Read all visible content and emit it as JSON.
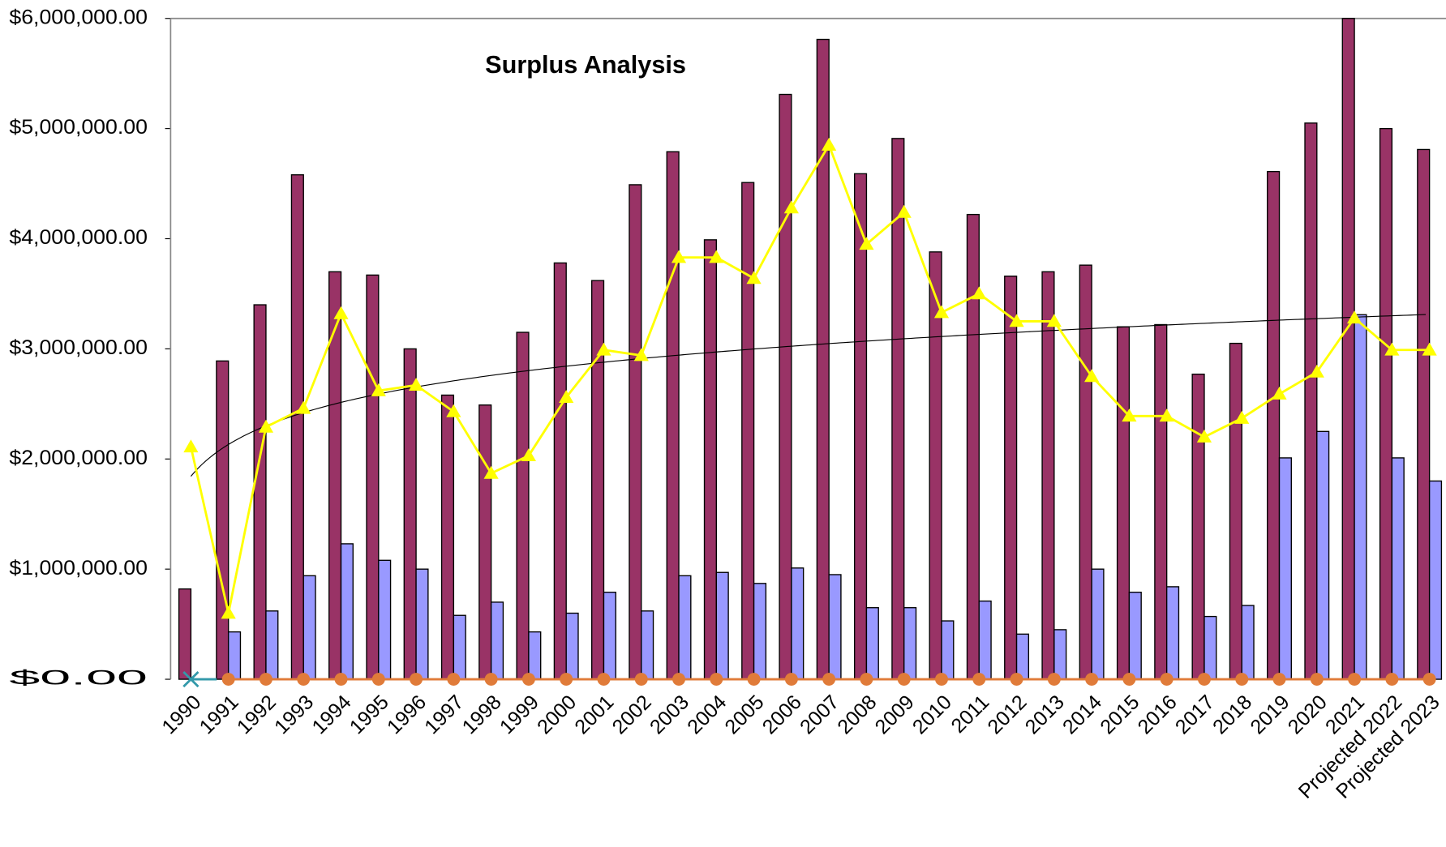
{
  "chart_data": {
    "type": "bar",
    "title": "Surplus Analysis",
    "categories": [
      "1990",
      "1991",
      "1992",
      "1993",
      "1994",
      "1995",
      "1996",
      "1997",
      "1998",
      "1999",
      "2000",
      "2001",
      "2002",
      "2003",
      "2004",
      "2005",
      "2006",
      "2007",
      "2008",
      "2009",
      "2010",
      "2011",
      "2012",
      "2013",
      "2014",
      "2015",
      "2016",
      "2017",
      "2018",
      "2019",
      "2020",
      "2021",
      "Projected 2022",
      "Projected 2023"
    ],
    "series": [
      {
        "kind": "bar",
        "color": "#993366",
        "values": [
          820000,
          2890000,
          3400000,
          4580000,
          3700000,
          3670000,
          3000000,
          2580000,
          2490000,
          3150000,
          3780000,
          3620000,
          4490000,
          4790000,
          3990000,
          4510000,
          5310000,
          5810000,
          4590000,
          4910000,
          3880000,
          4220000,
          3660000,
          3700000,
          3760000,
          3200000,
          3220000,
          2770000,
          3050000,
          4610000,
          5050000,
          6000000,
          5000000,
          4810000
        ]
      },
      {
        "kind": "bar",
        "color": "#9999ff",
        "values": [
          null,
          430000,
          620000,
          940000,
          1230000,
          1080000,
          1000000,
          580000,
          700000,
          430000,
          600000,
          790000,
          620000,
          940000,
          970000,
          870000,
          1010000,
          950000,
          650000,
          650000,
          530000,
          710000,
          410000,
          450000,
          1000000,
          790000,
          840000,
          570000,
          670000,
          2010000,
          2250000,
          3310000,
          2010000,
          1800000
        ]
      },
      {
        "kind": "line",
        "marker": "triangle",
        "color": "#ffff00",
        "trendline": "log",
        "values": [
          2110000,
          600000,
          2290000,
          2460000,
          3320000,
          2620000,
          2670000,
          2430000,
          1870000,
          2030000,
          2560000,
          2990000,
          2940000,
          3830000,
          3830000,
          3640000,
          4280000,
          4850000,
          3950000,
          4240000,
          3330000,
          3500000,
          3250000,
          3250000,
          2750000,
          2390000,
          2390000,
          2200000,
          2370000,
          2590000,
          2790000,
          3280000,
          2990000,
          2990000
        ]
      },
      {
        "kind": "line",
        "marker": "circle",
        "color": "#e07b39",
        "values": [
          null,
          0,
          0,
          0,
          0,
          0,
          0,
          0,
          0,
          0,
          0,
          0,
          0,
          0,
          0,
          0,
          0,
          0,
          0,
          0,
          0,
          0,
          0,
          0,
          0,
          0,
          0,
          0,
          0,
          0,
          0,
          0,
          0,
          0
        ]
      },
      {
        "kind": "line",
        "marker": "cross",
        "color": "#3399aa",
        "values": [
          0,
          null,
          null,
          null,
          null,
          null,
          null,
          null,
          null,
          null,
          null,
          null,
          null,
          null,
          null,
          null,
          null,
          null,
          null,
          null,
          null,
          null,
          null,
          null,
          null,
          null,
          null,
          null,
          null,
          null,
          null,
          null,
          null,
          null
        ]
      }
    ],
    "ylim": [
      0,
      6000000
    ],
    "yticks": [
      {
        "value": 0,
        "label": "$0.00"
      },
      {
        "value": 1000000,
        "label": "$1,000,000.00"
      },
      {
        "value": 2000000,
        "label": "$2,000,000.00"
      },
      {
        "value": 3000000,
        "label": "$3,000,000.00"
      },
      {
        "value": 4000000,
        "label": "$4,000,000.00"
      },
      {
        "value": 5000000,
        "label": "$5,000,000.00"
      },
      {
        "value": 6000000,
        "label": "$6,000,000.00"
      }
    ]
  }
}
